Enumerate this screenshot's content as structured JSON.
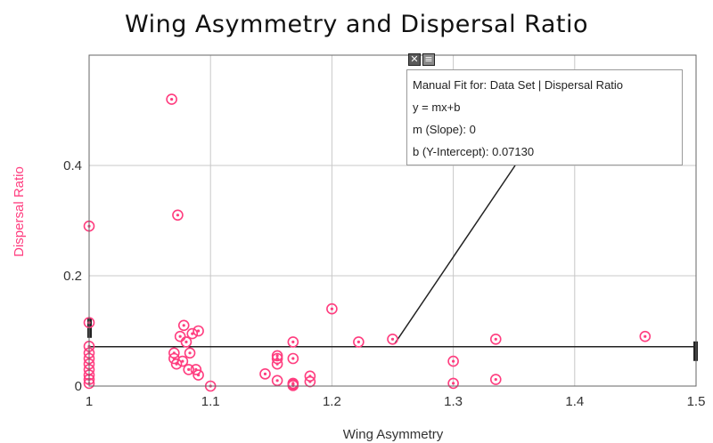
{
  "chart_data": {
    "type": "scatter",
    "title": "Wing Asymmetry and Dispersal Ratio",
    "xlabel": "Wing Asymmetry",
    "ylabel": "Dispersal Ratio",
    "xlim": [
      1.0,
      1.5
    ],
    "ylim": [
      0.0,
      0.6
    ],
    "xticks": [
      "1",
      "1.1",
      "1.2",
      "1.3",
      "1.4",
      "1.5"
    ],
    "xtick_values": [
      1.0,
      1.1,
      1.2,
      1.3,
      1.4,
      1.5
    ],
    "yticks": [
      "0",
      "0.2",
      "0.4"
    ],
    "ytick_values": [
      0.0,
      0.2,
      0.4
    ],
    "grid": true,
    "colors": {
      "points": "#ff3d7f",
      "ylabel": "#ff3d7f",
      "fit_line": "#222222",
      "grid": "#c8c8c8"
    },
    "series": [
      {
        "marker": "circle-dot",
        "x": [
          1.0,
          1.0,
          1.0,
          1.0,
          1.0,
          1.0,
          1.0,
          1.0,
          1.0,
          1.0,
          1.068,
          1.07,
          1.07,
          1.072,
          1.073,
          1.075,
          1.077,
          1.078,
          1.08,
          1.082,
          1.083,
          1.085,
          1.088,
          1.09,
          1.09,
          1.1,
          1.145,
          1.155,
          1.155,
          1.155,
          1.155,
          1.168,
          1.168,
          1.168,
          1.168,
          1.168,
          1.182,
          1.182,
          1.2,
          1.222,
          1.25,
          1.3,
          1.3,
          1.335,
          1.335,
          1.458
        ],
        "y": [
          0.29,
          0.115,
          0.072,
          0.06,
          0.05,
          0.04,
          0.03,
          0.02,
          0.012,
          0.005,
          0.52,
          0.06,
          0.05,
          0.04,
          0.31,
          0.09,
          0.045,
          0.11,
          0.08,
          0.03,
          0.06,
          0.095,
          0.03,
          0.1,
          0.02,
          0.0,
          0.022,
          0.055,
          0.05,
          0.04,
          0.01,
          0.08,
          0.05,
          0.005,
          0.003,
          0.001,
          0.018,
          0.008,
          0.14,
          0.08,
          0.085,
          0.045,
          0.005,
          0.085,
          0.012,
          0.09
        ]
      }
    ],
    "fit": {
      "type": "manual",
      "slope": 0,
      "intercept": 0.0713,
      "anchor_x": 1.252
    }
  },
  "fit_box": {
    "line1": "Manual Fit for: Data Set | Dispersal Ratio",
    "line2": "y = mx+b",
    "line3": "m (Slope): 0",
    "line4": "b (Y-Intercept): 0.07130",
    "close_glyph": "✕",
    "menu_glyph": "≡"
  }
}
